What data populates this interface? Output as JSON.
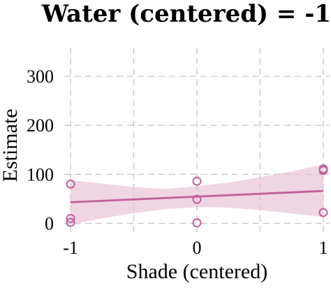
{
  "chart_data": {
    "type": "scatter",
    "title": "Water (centered) = -1",
    "xlabel": "Shade (centered)",
    "ylabel": "Estimate",
    "xlim": [
      -1.05,
      1.05
    ],
    "ylim": [
      -25,
      370
    ],
    "x_ticks": [
      -1,
      0,
      1
    ],
    "x_tick_labels": [
      "-1",
      "0",
      "1"
    ],
    "y_ticks": [
      0,
      100,
      200,
      300
    ],
    "y_tick_labels": [
      "0",
      "100",
      "200",
      "300"
    ],
    "grid": true,
    "color": "#c0609a",
    "band_color": "#e8bfd3",
    "points": [
      {
        "x": -1,
        "y": 80
      },
      {
        "x": -1,
        "y": 10
      },
      {
        "x": -1,
        "y": 2
      },
      {
        "x": 0,
        "y": 86
      },
      {
        "x": 0,
        "y": 49
      },
      {
        "x": 0,
        "y": 1
      },
      {
        "x": 1,
        "y": 111
      },
      {
        "x": 1,
        "y": 108
      },
      {
        "x": 1,
        "y": 22
      }
    ],
    "fit_line": {
      "x": [
        -1,
        1
      ],
      "y": [
        43,
        66
      ]
    },
    "confidence_band": {
      "x": [
        -1,
        -0.75,
        -0.5,
        -0.25,
        0,
        0.25,
        0.5,
        0.75,
        1
      ],
      "lower": [
        -2,
        10,
        21,
        29,
        33,
        32,
        27,
        20,
        13
      ],
      "upper": [
        88,
        81,
        74,
        70,
        76,
        83,
        94,
        106,
        120
      ]
    }
  }
}
